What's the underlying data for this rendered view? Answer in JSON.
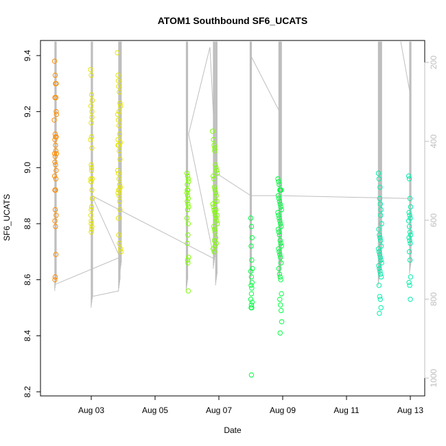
{
  "chart_data": {
    "type": "scatter",
    "title": "ATOM1 Southbound SF6_UCATS",
    "xlabel": "Date",
    "ylabel": "SF6_UCATS",
    "x_ticks": [
      "Aug 03",
      "Aug 05",
      "Aug 07",
      "Aug 09",
      "Aug 11",
      "Aug 13"
    ],
    "y_ticks": [
      "8.2",
      "8.4",
      "8.6",
      "8.8",
      "9.0",
      "9.2",
      "9.4"
    ],
    "y_range": [
      8.2,
      9.45
    ],
    "x_range_days_aug": [
      1.08,
      13.45
    ],
    "right_axis": {
      "ticks": [
        "200",
        "400",
        "600",
        "800",
        "1000"
      ],
      "range": [
        1045,
        155
      ],
      "inverted": true,
      "color": "#bebebe"
    },
    "grid": false,
    "legend": "none",
    "series": [
      {
        "color": "#FF8C00",
        "x": [
          "2016-08-01",
          "2016-08-01",
          "2016-08-01",
          "2016-08-01",
          "2016-08-01",
          "2016-08-01",
          "2016-08-01",
          "2016-08-01",
          "2016-08-01",
          "2016-08-01",
          "2016-08-01",
          "2016-08-01",
          "2016-08-01",
          "2016-08-01",
          "2016-08-01",
          "2016-08-01",
          "2016-08-01",
          "2016-08-01",
          "2016-08-01",
          "2016-08-01",
          "2016-08-01",
          "2016-08-01",
          "2016-08-01",
          "2016-08-01",
          "2016-08-01",
          "2016-08-01",
          "2016-08-01",
          "2016-08-01",
          "2016-08-01",
          "2016-08-01",
          "2016-08-01",
          "2016-08-01"
        ],
        "x_day": [
          1.85,
          1.87,
          1.88,
          1.9,
          1.86,
          1.89,
          1.91,
          1.84,
          1.87,
          1.9,
          1.86,
          1.88,
          1.89,
          1.85,
          1.91,
          1.87,
          1.86,
          1.88,
          1.9,
          1.85,
          1.89,
          1.86,
          1.88,
          1.87,
          1.9,
          1.86,
          1.88,
          1.89,
          1.87,
          1.86,
          1.9,
          1.88
        ],
        "y": [
          9.38,
          9.33,
          9.3,
          9.3,
          9.25,
          9.25,
          9.19,
          9.17,
          9.12,
          9.11,
          9.1,
          9.08,
          9.06,
          9.05,
          9.05,
          9.04,
          9.02,
          9.01,
          8.99,
          8.97,
          8.96,
          8.92,
          8.92,
          8.85,
          8.83,
          8.81,
          8.79,
          8.69,
          8.61,
          8.6,
          9.2,
          9.11
        ]
      },
      {
        "color": "#E5E500",
        "x_day": [
          2.98,
          3.0,
          3.01,
          3.03,
          2.99,
          3.02,
          3.0,
          3.01,
          2.98,
          3.02,
          3.0,
          3.01,
          2.99,
          3.03,
          3.0,
          3.02,
          3.01,
          2.99,
          3.0,
          3.02,
          3.01,
          3.0,
          2.99,
          3.02,
          3.0,
          3.01,
          3.03,
          3.0,
          3.82,
          3.84,
          3.85,
          3.86,
          3.88,
          3.9,
          3.92,
          3.83,
          3.85,
          3.87,
          3.89,
          3.91,
          3.84,
          3.86,
          3.88,
          3.9,
          3.83,
          3.85,
          3.87,
          3.89,
          3.91,
          3.86,
          3.88,
          3.84,
          3.87,
          3.89,
          3.9,
          3.85,
          3.86,
          3.88,
          3.92,
          3.93,
          3.84,
          3.87
        ],
        "y": [
          9.35,
          9.33,
          9.26,
          9.24,
          9.22,
          9.2,
          9.16,
          9.11,
          9.1,
          9.07,
          9.01,
          8.99,
          8.96,
          8.96,
          8.95,
          8.92,
          8.86,
          8.83,
          8.81,
          8.79,
          8.78,
          8.77,
          8.95,
          9.18,
          8.8,
          9.0,
          8.89,
          8.85,
          9.41,
          9.33,
          9.31,
          9.29,
          9.27,
          9.23,
          9.22,
          9.19,
          9.17,
          9.15,
          9.12,
          9.09,
          9.08,
          9.08,
          9.06,
          9.03,
          8.99,
          8.98,
          8.96,
          8.94,
          8.93,
          8.92,
          8.92,
          8.91,
          8.9,
          8.88,
          8.85,
          8.82,
          8.76,
          8.73,
          8.71,
          8.7,
          9.1,
          9.2
        ]
      },
      {
        "color": "#7FFF00",
        "x_day": [
          6.0,
          6.02,
          6.04,
          6.05,
          6.01,
          6.03,
          6.0,
          6.02,
          6.04,
          6.01,
          6.03,
          6.05,
          6.02,
          6.0,
          6.04,
          6.03,
          6.01,
          6.05,
          6.02,
          6.03,
          6.04,
          6.01,
          6.8,
          6.83,
          6.85,
          6.87,
          6.89,
          6.91,
          6.93,
          6.95,
          6.82,
          6.84,
          6.86,
          6.88,
          6.9,
          6.92,
          6.94,
          6.81,
          6.83,
          6.85,
          6.87,
          6.89,
          6.91,
          6.93,
          6.95,
          6.84,
          6.86,
          6.88,
          6.9,
          6.92,
          6.82,
          6.85,
          6.87,
          6.89,
          6.91,
          6.94,
          6.86,
          6.88
        ],
        "y": [
          8.98,
          8.97,
          8.96,
          8.95,
          8.94,
          8.92,
          8.91,
          8.9,
          8.89,
          8.88,
          8.87,
          8.86,
          8.85,
          8.82,
          8.8,
          8.76,
          8.73,
          8.68,
          8.67,
          8.66,
          8.56,
          8.92,
          9.13,
          9.1,
          9.08,
          9.06,
          9.01,
          9.0,
          8.99,
          8.98,
          8.97,
          8.96,
          8.93,
          8.92,
          8.91,
          8.9,
          8.88,
          8.87,
          8.86,
          8.85,
          8.84,
          8.83,
          8.82,
          8.81,
          8.8,
          8.79,
          8.78,
          8.77,
          8.75,
          8.73,
          8.71,
          8.7,
          9.07,
          8.88,
          8.85,
          8.83,
          8.74,
          8.72
        ]
      },
      {
        "color": "#00FF40",
        "x_day": [
          8.0,
          8.02,
          8.04,
          8.01,
          8.03,
          8.05,
          8.0,
          8.02,
          8.04,
          8.01,
          8.03,
          8.02,
          8.0,
          8.04,
          8.02,
          8.03,
          8.01,
          8.02,
          8.85,
          8.87,
          8.89,
          8.91,
          8.93,
          8.95,
          8.86,
          8.88,
          8.9,
          8.92,
          8.94,
          8.96,
          8.85,
          8.87,
          8.89,
          8.91,
          8.93,
          8.95,
          8.86,
          8.88,
          8.9,
          8.92,
          8.94,
          8.96,
          8.87,
          8.89,
          8.91,
          8.93,
          8.95,
          8.88,
          8.9,
          8.92,
          8.94,
          8.96,
          8.91,
          8.93,
          8.95,
          8.97,
          8.92
        ],
        "y": [
          8.82,
          8.79,
          8.75,
          8.72,
          8.67,
          8.64,
          8.63,
          8.61,
          8.59,
          8.58,
          8.57,
          8.55,
          8.53,
          8.52,
          8.51,
          8.5,
          8.5,
          8.26,
          8.96,
          8.95,
          8.94,
          8.92,
          8.92,
          8.92,
          8.9,
          8.89,
          8.88,
          8.87,
          8.86,
          8.85,
          8.84,
          8.83,
          8.82,
          8.81,
          8.8,
          8.79,
          8.78,
          8.77,
          8.76,
          8.74,
          8.73,
          8.72,
          8.71,
          8.7,
          8.69,
          8.68,
          8.66,
          8.64,
          8.62,
          8.61,
          8.6,
          8.55,
          8.53,
          8.51,
          8.49,
          8.45,
          8.41
        ]
      },
      {
        "color": "#00EEAA",
        "x_day": [
          12.0,
          12.02,
          12.04,
          12.06,
          12.08,
          12.1,
          12.01,
          12.03,
          12.05,
          12.07,
          12.09,
          12.0,
          12.02,
          12.04,
          12.06,
          12.08,
          12.1,
          12.01,
          12.03,
          12.05,
          12.07,
          12.09,
          12.02,
          12.04,
          12.06,
          12.08,
          12.03,
          12.05,
          12.07,
          12.95,
          12.97,
          12.99,
          13.01,
          12.96,
          12.98,
          13.0,
          12.95,
          12.97,
          12.99,
          13.01,
          12.96,
          12.98,
          13.0,
          12.97,
          12.99,
          13.01,
          12.96,
          12.98,
          13.0
        ],
        "y": [
          8.98,
          8.96,
          8.89,
          8.87,
          8.85,
          8.8,
          8.78,
          8.76,
          8.75,
          8.74,
          8.72,
          8.71,
          8.7,
          8.69,
          8.68,
          8.67,
          8.66,
          8.65,
          8.64,
          8.63,
          8.62,
          8.61,
          8.58,
          8.54,
          8.53,
          8.5,
          8.48,
          8.93,
          8.83,
          8.97,
          8.96,
          8.89,
          8.86,
          8.84,
          8.83,
          8.82,
          8.81,
          8.79,
          8.77,
          8.76,
          8.75,
          8.74,
          8.73,
          8.7,
          8.67,
          8.61,
          8.59,
          8.58,
          8.53
        ]
      }
    ],
    "profile_line": {
      "color": "#bebebe",
      "right_axis_series": true
    }
  }
}
